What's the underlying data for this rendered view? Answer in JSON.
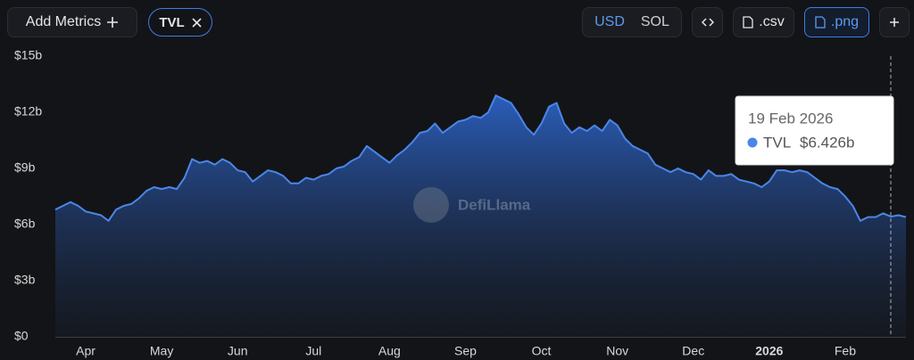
{
  "toolbar": {
    "add_metrics": "Add Metrics",
    "chip": "TVL",
    "currencies": [
      "USD",
      "SOL"
    ],
    "active_currency": 0,
    "exports": [
      ".csv",
      ".png"
    ],
    "active_export": 1
  },
  "watermark": "DefiLlama",
  "chart_data": {
    "type": "area",
    "categories": [
      null,
      null,
      null,
      null,
      "Apr",
      null,
      null,
      null,
      null,
      null,
      null,
      null,
      null,
      null,
      "May",
      null,
      null,
      null,
      null,
      null,
      null,
      null,
      null,
      null,
      "Jun",
      null,
      null,
      null,
      null,
      null,
      null,
      null,
      null,
      null,
      "Jul",
      null,
      null,
      null,
      null,
      null,
      null,
      null,
      null,
      null,
      "Aug",
      null,
      null,
      null,
      null,
      null,
      null,
      null,
      null,
      null,
      "Sep",
      null,
      null,
      null,
      null,
      null,
      null,
      null,
      null,
      null,
      "Oct",
      null,
      null,
      null,
      null,
      null,
      null,
      null,
      null,
      null,
      "Nov",
      null,
      null,
      null,
      null,
      null,
      null,
      null,
      null,
      null,
      "Dec",
      null,
      null,
      null,
      null,
      null,
      null,
      null,
      null,
      null,
      "2026",
      null,
      null,
      null,
      null,
      null,
      null,
      null,
      null,
      null,
      "Feb",
      null,
      null,
      null,
      null,
      null,
      null,
      null,
      null
    ],
    "series": [
      {
        "name": "TVL",
        "color": "#4a86e8",
        "values": [
          6.8,
          7.0,
          7.2,
          7.0,
          6.7,
          6.6,
          6.5,
          6.2,
          6.8,
          7.0,
          7.1,
          7.4,
          7.8,
          8.0,
          7.9,
          8.0,
          7.9,
          8.5,
          9.5,
          9.3,
          9.4,
          9.2,
          9.5,
          9.3,
          8.9,
          8.8,
          8.3,
          8.6,
          8.9,
          8.8,
          8.6,
          8.2,
          8.2,
          8.5,
          8.4,
          8.6,
          8.7,
          9.0,
          9.1,
          9.4,
          9.6,
          10.2,
          9.9,
          9.6,
          9.3,
          9.7,
          10.0,
          10.4,
          10.9,
          11.0,
          11.4,
          10.9,
          11.2,
          11.5,
          11.6,
          11.8,
          11.7,
          12.0,
          12.9,
          12.7,
          12.5,
          11.9,
          11.2,
          10.8,
          11.4,
          12.3,
          12.5,
          11.4,
          10.9,
          11.2,
          11.0,
          11.3,
          11.0,
          11.6,
          11.3,
          10.6,
          10.2,
          10.0,
          9.8,
          9.2,
          9.0,
          8.8,
          9.0,
          8.8,
          8.7,
          8.4,
          8.9,
          8.6,
          8.6,
          8.7,
          8.4,
          8.3,
          8.2,
          8.0,
          8.3,
          8.9,
          8.9,
          8.8,
          8.9,
          8.8,
          8.5,
          8.2,
          8.0,
          7.9,
          7.5,
          7.0,
          6.2,
          6.4,
          6.4,
          6.6,
          6.426,
          6.5,
          6.4
        ]
      }
    ],
    "ylim": [
      0,
      15
    ],
    "yticks": [
      {
        "value": 0,
        "label": "$0"
      },
      {
        "value": 3,
        "label": "$3b"
      },
      {
        "value": 6,
        "label": "$6b"
      },
      {
        "value": 9,
        "label": "$9b"
      },
      {
        "value": 12,
        "label": "$12b"
      },
      {
        "value": 15,
        "label": "$15b"
      }
    ],
    "grid": false,
    "tooltip": {
      "date": "19 Feb 2026",
      "series": "TVL",
      "value": 6.426,
      "value_label": "$6.426b"
    }
  }
}
